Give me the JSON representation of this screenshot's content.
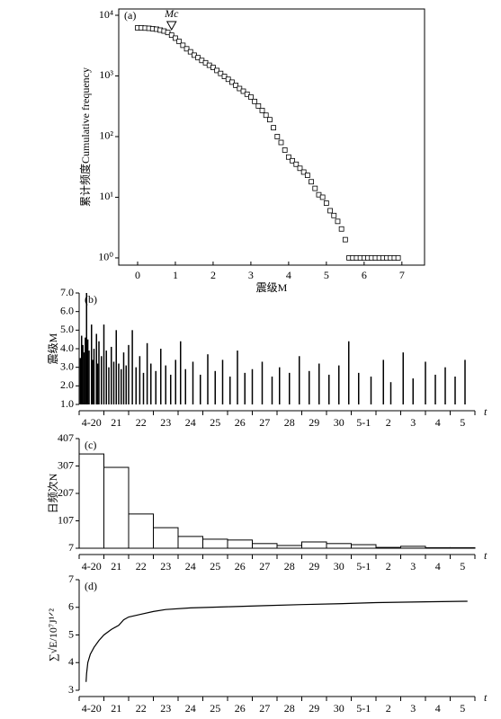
{
  "chart_data": [
    {
      "type": "scatter",
      "title": "(a)",
      "xlabel": "震级M",
      "ylabel": "累计频度Cumulative frequency",
      "annotation": {
        "text": "Mc",
        "x": 0.9
      },
      "log_y": true,
      "color": "#000000",
      "x": [
        0.0,
        0.1,
        0.2,
        0.3,
        0.4,
        0.5,
        0.6,
        0.7,
        0.8,
        0.9,
        1.0,
        1.1,
        1.2,
        1.3,
        1.4,
        1.5,
        1.6,
        1.7,
        1.8,
        1.9,
        2.0,
        2.1,
        2.2,
        2.3,
        2.4,
        2.5,
        2.6,
        2.7,
        2.8,
        2.9,
        3.0,
        3.1,
        3.2,
        3.3,
        3.4,
        3.5,
        3.6,
        3.7,
        3.8,
        3.9,
        4.0,
        4.1,
        4.2,
        4.3,
        4.4,
        4.5,
        4.6,
        4.7,
        4.8,
        4.9,
        5.0,
        5.1,
        5.2,
        5.3,
        5.4,
        5.5,
        5.6,
        5.7,
        5.8,
        5.9,
        6.0,
        6.1,
        6.2,
        6.3,
        6.4,
        6.5,
        6.6,
        6.7,
        6.8,
        6.9
      ],
      "values": [
        6200,
        6200,
        6150,
        6100,
        6000,
        5900,
        5700,
        5500,
        5200,
        4700,
        4200,
        3700,
        3200,
        2800,
        2500,
        2200,
        2000,
        1800,
        1650,
        1500,
        1380,
        1230,
        1100,
        980,
        880,
        790,
        700,
        620,
        560,
        500,
        450,
        380,
        320,
        270,
        225,
        190,
        140,
        100,
        80,
        60,
        46,
        40,
        35,
        30,
        26,
        23,
        18,
        14,
        11,
        10,
        8,
        6,
        5,
        4,
        3,
        2,
        1,
        1,
        1,
        1,
        1,
        1,
        1,
        1,
        1,
        1,
        1,
        1,
        1,
        1
      ],
      "xlim": [
        -0.5,
        7.6
      ],
      "xticks": [
        0,
        1,
        2,
        3,
        4,
        5,
        6,
        7
      ],
      "ylim": [
        0.76,
        12700
      ],
      "yticks": [
        {
          "value": 1,
          "label": "10⁰"
        },
        {
          "value": 10,
          "label": "10¹"
        },
        {
          "value": 100,
          "label": "10²"
        },
        {
          "value": 1000,
          "label": "10³"
        },
        {
          "value": 10000,
          "label": "10⁴"
        }
      ]
    },
    {
      "type": "spike",
      "title": "(b)",
      "xlabel": "t",
      "ylabel": "震级M",
      "color": "#000000",
      "categories": [
        "4-20",
        "21",
        "22",
        "23",
        "24",
        "25",
        "26",
        "27",
        "28",
        "29",
        "30",
        "5-1",
        "2",
        "3",
        "4",
        "5"
      ],
      "x": [
        0.05,
        0.1,
        0.15,
        0.2,
        0.25,
        0.3,
        0.35,
        0.4,
        0.5,
        0.55,
        0.6,
        0.7,
        0.75,
        0.8,
        0.9,
        1.0,
        1.1,
        1.2,
        1.3,
        1.4,
        1.5,
        1.6,
        1.7,
        1.8,
        1.9,
        2.0,
        2.15,
        2.3,
        2.45,
        2.6,
        2.75,
        2.9,
        3.1,
        3.3,
        3.5,
        3.7,
        3.9,
        4.1,
        4.3,
        4.6,
        4.9,
        5.2,
        5.5,
        5.8,
        6.1,
        6.4,
        6.7,
        7.0,
        7.4,
        7.8,
        8.1,
        8.5,
        8.9,
        9.3,
        9.7,
        10.1,
        10.5,
        10.9,
        11.3,
        11.8,
        12.3,
        12.6,
        13.1,
        13.5,
        14.0,
        14.4,
        14.8,
        15.2,
        15.6
      ],
      "values": [
        3.5,
        4.7,
        4.2,
        3.8,
        4.6,
        7.0,
        4.5,
        3.9,
        5.3,
        3.4,
        4.0,
        4.8,
        3.2,
        4.4,
        3.6,
        5.3,
        3.9,
        3.0,
        4.1,
        3.3,
        5.0,
        3.2,
        2.9,
        3.8,
        3.1,
        4.2,
        5.0,
        3.0,
        3.6,
        2.7,
        4.3,
        3.2,
        2.8,
        4.0,
        3.1,
        2.6,
        3.4,
        4.4,
        2.9,
        3.3,
        2.6,
        3.7,
        2.8,
        3.4,
        2.5,
        3.9,
        2.7,
        2.9,
        3.3,
        2.5,
        3.0,
        2.7,
        3.6,
        2.8,
        3.2,
        2.6,
        3.1,
        4.4,
        2.7,
        2.5,
        3.4,
        2.2,
        3.8,
        2.4,
        3.3,
        2.6,
        3.0,
        2.5,
        3.4
      ],
      "xlim": [
        0,
        16
      ],
      "ylim": [
        1,
        7
      ],
      "yticks": [
        {
          "value": 1,
          "label": "1.0"
        },
        {
          "value": 2,
          "label": "2.0"
        },
        {
          "value": 3,
          "label": "3.0"
        },
        {
          "value": 4,
          "label": "4.0"
        },
        {
          "value": 5,
          "label": "5.0"
        },
        {
          "value": 6,
          "label": "6.0"
        },
        {
          "value": 7,
          "label": "7.0"
        }
      ]
    },
    {
      "type": "bar",
      "title": "(c)",
      "xlabel": "t",
      "ylabel": "日频次N",
      "color": "#ffffff",
      "categories": [
        "4-20",
        "21",
        "22",
        "23",
        "24",
        "25",
        "26",
        "27",
        "28",
        "29",
        "30",
        "5-1",
        "2",
        "3",
        "4",
        "5"
      ],
      "values": [
        351,
        302,
        132,
        82,
        50,
        40,
        37,
        24,
        17,
        30,
        24,
        20,
        10,
        14,
        9,
        9
      ],
      "ylim": [
        7,
        407
      ],
      "yticks": [
        7,
        107,
        207,
        307,
        407
      ]
    },
    {
      "type": "step",
      "title": "(d)",
      "xlabel": "t",
      "ylabel": "∑√E/10⁷J¹ᐟ²",
      "color": "#000000",
      "categories": [
        "4-20",
        "21",
        "22",
        "23",
        "24",
        "25",
        "26",
        "27",
        "28",
        "29",
        "30",
        "5-1",
        "2",
        "3",
        "4",
        "5"
      ],
      "x": [
        0.28,
        0.3,
        0.35,
        0.45,
        0.6,
        0.8,
        1.0,
        1.3,
        1.6,
        1.8,
        2.0,
        2.5,
        3.0,
        3.5,
        4.5,
        6.0,
        7.5,
        9.0,
        10.5,
        12.0,
        14.0,
        15.7
      ],
      "values": [
        3.3,
        3.6,
        4.0,
        4.3,
        4.55,
        4.8,
        5.0,
        5.2,
        5.35,
        5.55,
        5.65,
        5.75,
        5.85,
        5.92,
        5.98,
        6.02,
        6.06,
        6.1,
        6.13,
        6.17,
        6.2,
        6.22
      ],
      "xlim": [
        0,
        16
      ],
      "ylim": [
        3,
        7
      ],
      "yticks": [
        3,
        4,
        5,
        6,
        7
      ]
    }
  ]
}
